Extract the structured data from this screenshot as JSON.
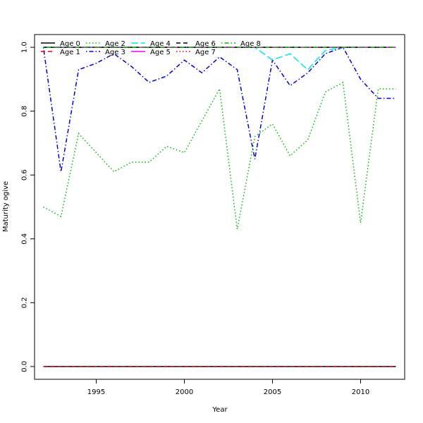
{
  "chart_data": {
    "type": "line",
    "title": "",
    "xlabel": "Year",
    "ylabel": "Maturity ogive",
    "xlim": [
      1991.5,
      2012.5
    ],
    "ylim": [
      -0.04,
      1.04
    ],
    "xticks": [
      1995,
      2000,
      2005,
      2010
    ],
    "yticks": [
      0.0,
      0.2,
      0.4,
      0.6,
      0.8,
      1.0
    ],
    "legend_position": "top-left",
    "x": [
      1992,
      1993,
      1994,
      1995,
      1996,
      1997,
      1998,
      1999,
      2000,
      2001,
      2002,
      2003,
      2004,
      2005,
      2006,
      2007,
      2008,
      2009,
      2010,
      2011,
      2012
    ],
    "series": [
      {
        "name": "Age 0",
        "color": "#000000",
        "dash": "solid",
        "values": [
          0,
          0,
          0,
          0,
          0,
          0,
          0,
          0,
          0,
          0,
          0,
          0,
          0,
          0,
          0,
          0,
          0,
          0,
          0,
          0,
          0
        ]
      },
      {
        "name": "Age 1",
        "color": "#df0000",
        "dash": "dashed",
        "values": [
          0,
          0,
          0,
          0,
          0,
          0,
          0,
          0,
          0,
          0,
          0,
          0,
          0,
          0,
          0,
          0,
          0,
          0,
          0,
          0,
          0
        ]
      },
      {
        "name": "Age 2",
        "color": "#00bb00",
        "dash": "dotted",
        "values": [
          0.5,
          0.47,
          0.73,
          0.67,
          0.61,
          0.64,
          0.64,
          0.69,
          0.67,
          0.77,
          0.87,
          0.43,
          0.72,
          0.76,
          0.66,
          0.71,
          0.86,
          0.89,
          0.45,
          0.87,
          0.87
        ]
      },
      {
        "name": "Age 3",
        "color": "#0000dd",
        "dash": "dotdash",
        "values": [
          1.0,
          0.61,
          0.93,
          0.95,
          0.98,
          0.94,
          0.89,
          0.91,
          0.96,
          0.92,
          0.97,
          0.93,
          0.65,
          0.96,
          0.88,
          0.92,
          0.98,
          1.0,
          0.9,
          0.84,
          0.84
        ]
      },
      {
        "name": "Age 4",
        "color": "#00e5ee",
        "dash": "longdash",
        "values": [
          1,
          1,
          1,
          1,
          1,
          1,
          1,
          1,
          1,
          1,
          1,
          1,
          1,
          0.96,
          0.98,
          0.93,
          0.99,
          1.0,
          1,
          1,
          1
        ]
      },
      {
        "name": "Age 5",
        "color": "#ee00ee",
        "dash": "solid",
        "values": [
          1,
          1,
          1,
          1,
          1,
          1,
          1,
          1,
          1,
          1,
          1,
          1,
          1,
          1,
          1,
          1,
          1,
          1,
          1,
          1,
          1
        ]
      },
      {
        "name": "Age 6",
        "color": "#000000",
        "dash": "dashed",
        "values": [
          1,
          1,
          1,
          1,
          1,
          1,
          1,
          1,
          1,
          1,
          1,
          1,
          1,
          1,
          1,
          1,
          1,
          1,
          1,
          1,
          1
        ]
      },
      {
        "name": "Age 7",
        "color": "#df0000",
        "dash": "dotted",
        "values": [
          1,
          1,
          1,
          1,
          1,
          1,
          1,
          1,
          1,
          1,
          1,
          1,
          1,
          1,
          1,
          1,
          1,
          1,
          1,
          1,
          1
        ]
      },
      {
        "name": "Age 8",
        "color": "#00bb00",
        "dash": "dotdash",
        "values": [
          1,
          1,
          1,
          1,
          1,
          1,
          1,
          1,
          1,
          1,
          1,
          1,
          1,
          1,
          1,
          1,
          1,
          1,
          1,
          1,
          1
        ]
      }
    ]
  }
}
